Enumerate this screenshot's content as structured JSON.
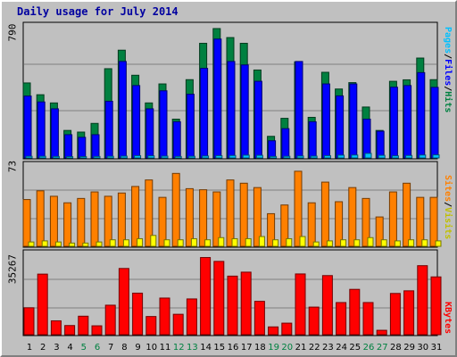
{
  "title": "Daily usage for July 2014",
  "colors": {
    "pages": "#00c0ff",
    "files": "#0000ff",
    "hits": "#008040",
    "sites": "#ff8000",
    "visits": "#ffff00",
    "kbytes": "#ff0000",
    "weekend_tick": "#008040",
    "weekday_tick": "#000000"
  },
  "chart_data": [
    {
      "type": "bar",
      "panel": "top",
      "ymax_label": "790",
      "ymax": 790,
      "right_label_parts": [
        "Pages",
        "/",
        "Files",
        "/",
        "Hits"
      ],
      "categories": [
        "1",
        "2",
        "3",
        "4",
        "5",
        "6",
        "7",
        "8",
        "9",
        "10",
        "11",
        "12",
        "13",
        "14",
        "15",
        "16",
        "17",
        "18",
        "19",
        "20",
        "21",
        "22",
        "23",
        "24",
        "25",
        "26",
        "27",
        "28",
        "29",
        "30",
        "31"
      ],
      "series": [
        {
          "name": "Hits",
          "values": [
            458,
            386,
            336,
            168,
            158,
            211,
            545,
            658,
            505,
            336,
            452,
            237,
            478,
            700,
            790,
            735,
            700,
            537,
            132,
            242,
            587,
            248,
            523,
            421,
            460,
            311,
            168,
            468,
            477,
            610,
            478
          ]
        },
        {
          "name": "Files",
          "values": [
            378,
            342,
            300,
            142,
            126,
            142,
            346,
            589,
            442,
            300,
            410,
            221,
            389,
            547,
            726,
            589,
            568,
            468,
            105,
            179,
            589,
            221,
            452,
            379,
            452,
            237,
            163,
            432,
            442,
            521,
            431
          ]
        },
        {
          "name": "Pages",
          "values": [
            10,
            10,
            9,
            8,
            8,
            9,
            10,
            11,
            14,
            13,
            11,
            9,
            10,
            12,
            14,
            15,
            17,
            16,
            9,
            10,
            12,
            11,
            14,
            17,
            18,
            28,
            16,
            13,
            15,
            18,
            19
          ]
        }
      ]
    },
    {
      "type": "bar",
      "panel": "middle",
      "ymax_label": "73",
      "ymax": 73,
      "right_label_parts": [
        "Sites",
        "/",
        "Visits"
      ],
      "categories": [
        "1",
        "2",
        "3",
        "4",
        "5",
        "6",
        "7",
        "8",
        "9",
        "10",
        "11",
        "12",
        "13",
        "14",
        "15",
        "16",
        "17",
        "18",
        "19",
        "20",
        "21",
        "22",
        "23",
        "24",
        "25",
        "26",
        "27",
        "28",
        "29",
        "30",
        "31"
      ],
      "series": [
        {
          "name": "Sites",
          "values": [
            43,
            51,
            46,
            40,
            44,
            50,
            46,
            49,
            55,
            61,
            45,
            67,
            53,
            52,
            50,
            61,
            58,
            54,
            30,
            38,
            69,
            40,
            59,
            41,
            54,
            44,
            27,
            50,
            58,
            45,
            45
          ]
        },
        {
          "name": "Visits",
          "values": [
            4,
            5,
            4,
            3,
            3,
            4,
            6,
            6,
            7,
            10,
            6,
            6,
            7,
            6,
            8,
            7,
            7,
            9,
            6,
            7,
            9,
            4,
            5,
            6,
            6,
            8,
            6,
            5,
            6,
            6,
            5
          ]
        }
      ]
    },
    {
      "type": "bar",
      "panel": "bottom",
      "ymax_label": "35267",
      "ymax": 35267,
      "right_label_parts": [
        "KBytes"
      ],
      "categories": [
        "1",
        "2",
        "3",
        "4",
        "5",
        "6",
        "7",
        "8",
        "9",
        "10",
        "11",
        "12",
        "13",
        "14",
        "15",
        "16",
        "17",
        "18",
        "19",
        "20",
        "21",
        "22",
        "23",
        "24",
        "25",
        "26",
        "27",
        "28",
        "29",
        "30",
        "31"
      ],
      "series": [
        {
          "name": "KBytes",
          "values": [
            12098,
            27200,
            6220,
            4110,
            8300,
            3985,
            13245,
            29733,
            18658,
            8160,
            16450,
            9164,
            16058,
            34650,
            32910,
            26300,
            28085,
            14980,
            3500,
            5180,
            27280,
            12390,
            26540,
            14430,
            20360,
            14440,
            1978,
            18520,
            19700,
            30990,
            25950
          ]
        }
      ]
    }
  ],
  "weekend_days": [
    "5",
    "6",
    "12",
    "13",
    "19",
    "20",
    "26",
    "27"
  ]
}
